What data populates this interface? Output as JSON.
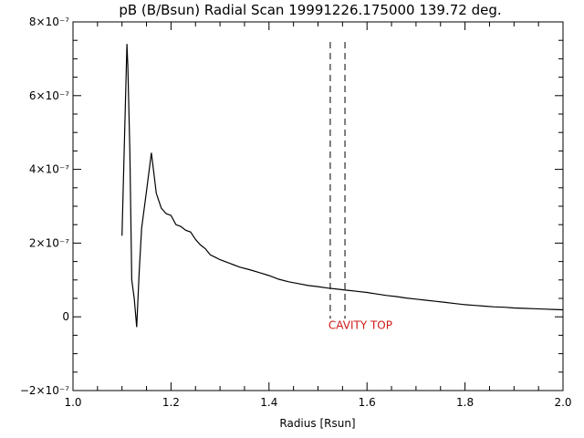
{
  "chart_data": {
    "type": "line",
    "title": "pB (B/Bsun) Radial Scan 19991226.175000 139.72 deg.",
    "xlabel": "Radius [Rsun]",
    "ylabel": "",
    "xlim": [
      1.0,
      2.0
    ],
    "ylim": [
      -2e-07,
      8e-07
    ],
    "x_ticks": [
      {
        "value": 1.0,
        "label": "1.0"
      },
      {
        "value": 1.2,
        "label": "1.2"
      },
      {
        "value": 1.4,
        "label": "1.4"
      },
      {
        "value": 1.6,
        "label": "1.6"
      },
      {
        "value": 1.8,
        "label": "1.8"
      },
      {
        "value": 2.0,
        "label": "2.0"
      }
    ],
    "y_ticks": [
      {
        "value": -2e-07,
        "label": "−2×10⁻⁷"
      },
      {
        "value": 0,
        "label": "0"
      },
      {
        "value": 2e-07,
        "label": "2×10⁻⁷"
      },
      {
        "value": 4e-07,
        "label": "4×10⁻⁷"
      },
      {
        "value": 6e-07,
        "label": "6×10⁻⁷"
      },
      {
        "value": 8e-07,
        "label": "8×10⁻⁷"
      }
    ],
    "grid": false,
    "series": [
      {
        "color": "#000000",
        "x": [
          1.1,
          1.11,
          1.112,
          1.116,
          1.12,
          1.125,
          1.13,
          1.135,
          1.14,
          1.15,
          1.16,
          1.165,
          1.17,
          1.18,
          1.19,
          1.2,
          1.21,
          1.22,
          1.23,
          1.24,
          1.25,
          1.26,
          1.27,
          1.28,
          1.29,
          1.3,
          1.32,
          1.34,
          1.36,
          1.38,
          1.4,
          1.42,
          1.44,
          1.46,
          1.48,
          1.5,
          1.52,
          1.54,
          1.56,
          1.58,
          1.6,
          1.62,
          1.64,
          1.66,
          1.68,
          1.7,
          1.72,
          1.74,
          1.76,
          1.78,
          1.8,
          1.82,
          1.84,
          1.86,
          1.88,
          1.9,
          1.92,
          1.94,
          1.96,
          1.98,
          2.0
        ],
        "y": [
          2.2e-07,
          7.4e-07,
          6.8e-07,
          4.5e-07,
          1e-07,
          5e-08,
          -2.8e-08,
          1.2e-07,
          2.4e-07,
          3.4e-07,
          4.45e-07,
          3.9e-07,
          3.35e-07,
          2.95e-07,
          2.8e-07,
          2.75e-07,
          2.5e-07,
          2.45e-07,
          2.35e-07,
          2.3e-07,
          2.1e-07,
          1.95e-07,
          1.85e-07,
          1.68e-07,
          1.62e-07,
          1.55e-07,
          1.45e-07,
          1.35e-07,
          1.28e-07,
          1.2e-07,
          1.12e-07,
          1.02e-07,
          9.5e-08,
          9e-08,
          8.5e-08,
          8.2e-08,
          7.8e-08,
          7.5e-08,
          7.2e-08,
          6.9e-08,
          6.6e-08,
          6.2e-08,
          5.8e-08,
          5.5e-08,
          5.1e-08,
          4.8e-08,
          4.5e-08,
          4.2e-08,
          3.9e-08,
          3.6e-08,
          3.3e-08,
          3.1e-08,
          2.9e-08,
          2.7e-08,
          2.6e-08,
          2.4e-08,
          2.3e-08,
          2.2e-08,
          2.1e-08,
          2e-08,
          1.9e-08
        ]
      }
    ],
    "vlines": [
      {
        "x": 1.525,
        "style": "dashed",
        "color": "#000000"
      },
      {
        "x": 1.555,
        "style": "dashed",
        "color": "#000000"
      }
    ],
    "annotations": [
      {
        "text": "CAVITY TOP",
        "x": 1.525,
        "y": -2.8e-08,
        "color": "#d01818"
      }
    ]
  }
}
